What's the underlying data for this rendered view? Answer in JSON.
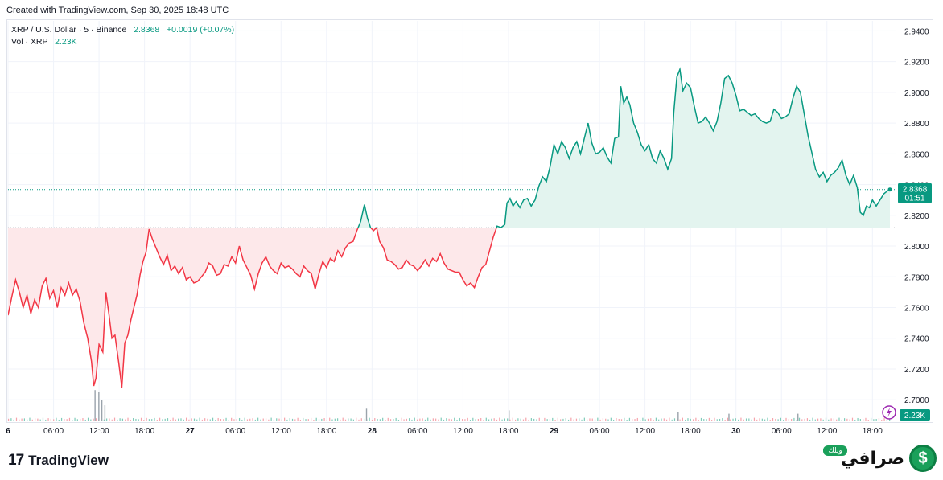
{
  "header": {
    "created": "Created with TradingView.com, Sep 30, 2025 18:48 UTC"
  },
  "legend": {
    "symbol": "XRP / U.S. Dollar · 5 · Binance",
    "price": "2.8368",
    "change": "+0.0019 (+0.07%)",
    "vol_label": "Vol · XRP",
    "vol_value": "2.23K"
  },
  "price_tag": {
    "price": "2.8368",
    "countdown": "01:51"
  },
  "vol_tag": "2.23K",
  "footer": {
    "tv_mark": "17",
    "tv_name": "TradingView",
    "brand_badge": "ويلك",
    "brand_word": "صرافي",
    "brand_symbol": "$"
  },
  "colors": {
    "up": "#089981",
    "down": "#f23645",
    "up_fill": "#e3f4ef",
    "down_fill": "#fde8ea",
    "grid": "#f0f3fa",
    "axis_text": "#131722"
  },
  "chart_data": {
    "type": "area",
    "title": "XRP / U.S. Dollar · 5 · Binance",
    "baseline": 2.812,
    "last_price": 2.8368,
    "ylim": [
      2.6865,
      2.9465
    ],
    "y_ticks": [
      "2.9400",
      "2.9200",
      "2.9000",
      "2.8800",
      "2.8600",
      "2.8400",
      "2.8200",
      "2.8000",
      "2.7800",
      "2.7600",
      "2.7400",
      "2.7200",
      "2.7000"
    ],
    "x_ticks": [
      {
        "label": "6",
        "t": 0
      },
      {
        "label": "06:00",
        "t": 6
      },
      {
        "label": "12:00",
        "t": 12
      },
      {
        "label": "18:00",
        "t": 18
      },
      {
        "label": "27",
        "t": 24
      },
      {
        "label": "06:00",
        "t": 30
      },
      {
        "label": "12:00",
        "t": 36
      },
      {
        "label": "18:00",
        "t": 42
      },
      {
        "label": "28",
        "t": 48
      },
      {
        "label": "06:00",
        "t": 54
      },
      {
        "label": "12:00",
        "t": 60
      },
      {
        "label": "18:00",
        "t": 66
      },
      {
        "label": "29",
        "t": 72
      },
      {
        "label": "06:00",
        "t": 78
      },
      {
        "label": "12:00",
        "t": 84
      },
      {
        "label": "18:00",
        "t": 90
      },
      {
        "label": "30",
        "t": 96
      },
      {
        "label": "06:00",
        "t": 102
      },
      {
        "label": "12:00",
        "t": 108
      },
      {
        "label": "18:00",
        "t": 114
      }
    ],
    "x_range": [
      0,
      116.3
    ],
    "series": [
      {
        "name": "XRP/USD",
        "points": [
          [
            0.0,
            2.755
          ],
          [
            0.5,
            2.767
          ],
          [
            1.0,
            2.778
          ],
          [
            1.5,
            2.77
          ],
          [
            2.0,
            2.76
          ],
          [
            2.5,
            2.768
          ],
          [
            3.0,
            2.756
          ],
          [
            3.5,
            2.765
          ],
          [
            4.0,
            2.76
          ],
          [
            4.5,
            2.774
          ],
          [
            5.0,
            2.779
          ],
          [
            5.5,
            2.766
          ],
          [
            6.0,
            2.771
          ],
          [
            6.5,
            2.76
          ],
          [
            7.0,
            2.773
          ],
          [
            7.5,
            2.768
          ],
          [
            8.0,
            2.776
          ],
          [
            8.5,
            2.768
          ],
          [
            9.0,
            2.772
          ],
          [
            9.5,
            2.764
          ],
          [
            10.0,
            2.75
          ],
          [
            10.5,
            2.74
          ],
          [
            11.0,
            2.725
          ],
          [
            11.3,
            2.709
          ],
          [
            11.6,
            2.714
          ],
          [
            12.0,
            2.736
          ],
          [
            12.5,
            2.731
          ],
          [
            12.9,
            2.77
          ],
          [
            13.3,
            2.756
          ],
          [
            13.7,
            2.74
          ],
          [
            14.1,
            2.742
          ],
          [
            14.6,
            2.724
          ],
          [
            15.0,
            2.708
          ],
          [
            15.4,
            2.737
          ],
          [
            15.8,
            2.742
          ],
          [
            16.2,
            2.752
          ],
          [
            16.6,
            2.76
          ],
          [
            17.0,
            2.768
          ],
          [
            17.4,
            2.781
          ],
          [
            17.8,
            2.79
          ],
          [
            18.2,
            2.796
          ],
          [
            18.6,
            2.811
          ],
          [
            19.0,
            2.805
          ],
          [
            19.5,
            2.799
          ],
          [
            20.0,
            2.793
          ],
          [
            20.5,
            2.788
          ],
          [
            21.0,
            2.794
          ],
          [
            21.5,
            2.784
          ],
          [
            22.0,
            2.787
          ],
          [
            22.5,
            2.782
          ],
          [
            23.0,
            2.786
          ],
          [
            23.5,
            2.778
          ],
          [
            24.0,
            2.78
          ],
          [
            24.5,
            2.776
          ],
          [
            25.0,
            2.777
          ],
          [
            25.5,
            2.78
          ],
          [
            26.0,
            2.783
          ],
          [
            26.5,
            2.789
          ],
          [
            27.0,
            2.787
          ],
          [
            27.5,
            2.781
          ],
          [
            28.0,
            2.782
          ],
          [
            28.5,
            2.788
          ],
          [
            29.0,
            2.787
          ],
          [
            29.5,
            2.793
          ],
          [
            30.0,
            2.789
          ],
          [
            30.5,
            2.8
          ],
          [
            31.0,
            2.791
          ],
          [
            31.5,
            2.786
          ],
          [
            32.0,
            2.781
          ],
          [
            32.5,
            2.772
          ],
          [
            33.0,
            2.782
          ],
          [
            33.5,
            2.789
          ],
          [
            34.0,
            2.793
          ],
          [
            34.5,
            2.787
          ],
          [
            35.0,
            2.784
          ],
          [
            35.5,
            2.782
          ],
          [
            36.0,
            2.789
          ],
          [
            36.5,
            2.786
          ],
          [
            37.0,
            2.787
          ],
          [
            37.5,
            2.785
          ],
          [
            38.0,
            2.782
          ],
          [
            38.5,
            2.78
          ],
          [
            39.0,
            2.787
          ],
          [
            39.5,
            2.784
          ],
          [
            40.0,
            2.782
          ],
          [
            40.5,
            2.772
          ],
          [
            41.0,
            2.782
          ],
          [
            41.5,
            2.79
          ],
          [
            42.0,
            2.786
          ],
          [
            42.5,
            2.792
          ],
          [
            43.0,
            2.79
          ],
          [
            43.5,
            2.797
          ],
          [
            44.0,
            2.793
          ],
          [
            44.5,
            2.799
          ],
          [
            45.0,
            2.802
          ],
          [
            45.5,
            2.803
          ],
          [
            46.0,
            2.81
          ],
          [
            46.5,
            2.816
          ],
          [
            47.0,
            2.827
          ],
          [
            47.4,
            2.818
          ],
          [
            47.8,
            2.812
          ],
          [
            48.2,
            2.81
          ],
          [
            48.6,
            2.812
          ],
          [
            49.0,
            2.803
          ],
          [
            49.5,
            2.799
          ],
          [
            50.0,
            2.791
          ],
          [
            50.5,
            2.79
          ],
          [
            51.0,
            2.788
          ],
          [
            51.5,
            2.785
          ],
          [
            52.0,
            2.786
          ],
          [
            52.5,
            2.791
          ],
          [
            53.0,
            2.788
          ],
          [
            53.5,
            2.787
          ],
          [
            54.0,
            2.784
          ],
          [
            54.5,
            2.787
          ],
          [
            55.0,
            2.791
          ],
          [
            55.5,
            2.787
          ],
          [
            56.0,
            2.792
          ],
          [
            56.5,
            2.79
          ],
          [
            57.0,
            2.795
          ],
          [
            57.5,
            2.789
          ],
          [
            58.0,
            2.785
          ],
          [
            58.5,
            2.784
          ],
          [
            59.0,
            2.783
          ],
          [
            59.5,
            2.783
          ],
          [
            60.0,
            2.778
          ],
          [
            60.5,
            2.774
          ],
          [
            61.0,
            2.776
          ],
          [
            61.5,
            2.773
          ],
          [
            62.0,
            2.78
          ],
          [
            62.5,
            2.786
          ],
          [
            63.0,
            2.788
          ],
          [
            63.5,
            2.797
          ],
          [
            64.0,
            2.806
          ],
          [
            64.5,
            2.813
          ],
          [
            65.0,
            2.812
          ],
          [
            65.5,
            2.814
          ],
          [
            65.8,
            2.828
          ],
          [
            66.2,
            2.831
          ],
          [
            66.6,
            2.826
          ],
          [
            67.0,
            2.829
          ],
          [
            67.5,
            2.825
          ],
          [
            68.0,
            2.83
          ],
          [
            68.5,
            2.831
          ],
          [
            69.0,
            2.826
          ],
          [
            69.5,
            2.83
          ],
          [
            70.0,
            2.839
          ],
          [
            70.5,
            2.845
          ],
          [
            71.0,
            2.842
          ],
          [
            71.5,
            2.852
          ],
          [
            72.0,
            2.866
          ],
          [
            72.5,
            2.86
          ],
          [
            73.0,
            2.868
          ],
          [
            73.5,
            2.864
          ],
          [
            74.0,
            2.857
          ],
          [
            74.5,
            2.864
          ],
          [
            75.0,
            2.868
          ],
          [
            75.5,
            2.86
          ],
          [
            76.0,
            2.87
          ],
          [
            76.5,
            2.88
          ],
          [
            77.0,
            2.867
          ],
          [
            77.5,
            2.86
          ],
          [
            78.0,
            2.861
          ],
          [
            78.5,
            2.864
          ],
          [
            79.0,
            2.858
          ],
          [
            79.5,
            2.854
          ],
          [
            80.0,
            2.87
          ],
          [
            80.5,
            2.871
          ],
          [
            80.8,
            2.904
          ],
          [
            81.2,
            2.893
          ],
          [
            81.6,
            2.897
          ],
          [
            82.0,
            2.892
          ],
          [
            82.5,
            2.88
          ],
          [
            83.0,
            2.874
          ],
          [
            83.5,
            2.866
          ],
          [
            84.0,
            2.862
          ],
          [
            84.5,
            2.866
          ],
          [
            85.0,
            2.857
          ],
          [
            85.5,
            2.854
          ],
          [
            86.0,
            2.862
          ],
          [
            86.5,
            2.857
          ],
          [
            87.0,
            2.85
          ],
          [
            87.5,
            2.857
          ],
          [
            87.8,
            2.887
          ],
          [
            88.2,
            2.91
          ],
          [
            88.6,
            2.915
          ],
          [
            89.0,
            2.901
          ],
          [
            89.5,
            2.906
          ],
          [
            90.0,
            2.903
          ],
          [
            90.5,
            2.891
          ],
          [
            91.0,
            2.88
          ],
          [
            91.5,
            2.881
          ],
          [
            92.0,
            2.884
          ],
          [
            92.5,
            2.88
          ],
          [
            93.0,
            2.875
          ],
          [
            93.5,
            2.881
          ],
          [
            94.0,
            2.893
          ],
          [
            94.5,
            2.909
          ],
          [
            95.0,
            2.911
          ],
          [
            95.5,
            2.906
          ],
          [
            96.0,
            2.898
          ],
          [
            96.5,
            2.888
          ],
          [
            97.0,
            2.889
          ],
          [
            97.5,
            2.887
          ],
          [
            98.0,
            2.885
          ],
          [
            98.5,
            2.886
          ],
          [
            99.0,
            2.883
          ],
          [
            99.5,
            2.881
          ],
          [
            100.0,
            2.88
          ],
          [
            100.5,
            2.881
          ],
          [
            101.0,
            2.889
          ],
          [
            101.5,
            2.887
          ],
          [
            102.0,
            2.883
          ],
          [
            102.5,
            2.884
          ],
          [
            103.0,
            2.886
          ],
          [
            103.5,
            2.896
          ],
          [
            104.0,
            2.904
          ],
          [
            104.5,
            2.9
          ],
          [
            105.0,
            2.886
          ],
          [
            105.5,
            2.872
          ],
          [
            106.0,
            2.861
          ],
          [
            106.5,
            2.85
          ],
          [
            107.0,
            2.845
          ],
          [
            107.5,
            2.848
          ],
          [
            108.0,
            2.842
          ],
          [
            108.5,
            2.846
          ],
          [
            109.0,
            2.848
          ],
          [
            109.5,
            2.851
          ],
          [
            110.0,
            2.856
          ],
          [
            110.5,
            2.846
          ],
          [
            111.0,
            2.84
          ],
          [
            111.5,
            2.846
          ],
          [
            112.0,
            2.838
          ],
          [
            112.4,
            2.822
          ],
          [
            112.8,
            2.82
          ],
          [
            113.2,
            2.826
          ],
          [
            113.6,
            2.825
          ],
          [
            114.0,
            2.83
          ],
          [
            114.5,
            2.826
          ],
          [
            115.0,
            2.83
          ],
          [
            115.5,
            2.834
          ],
          [
            116.0,
            2.836
          ],
          [
            116.3,
            2.8368
          ]
        ]
      }
    ],
    "volume": {
      "name": "Vol · XRP",
      "spikes": [
        [
          11.4,
          0.9
        ],
        [
          11.9,
          0.85
        ],
        [
          12.3,
          0.6
        ],
        [
          12.7,
          0.45
        ],
        [
          47.2,
          0.35
        ],
        [
          66.0,
          0.3
        ],
        [
          88.3,
          0.25
        ],
        [
          95.0,
          0.2
        ],
        [
          104.1,
          0.2
        ]
      ]
    }
  }
}
